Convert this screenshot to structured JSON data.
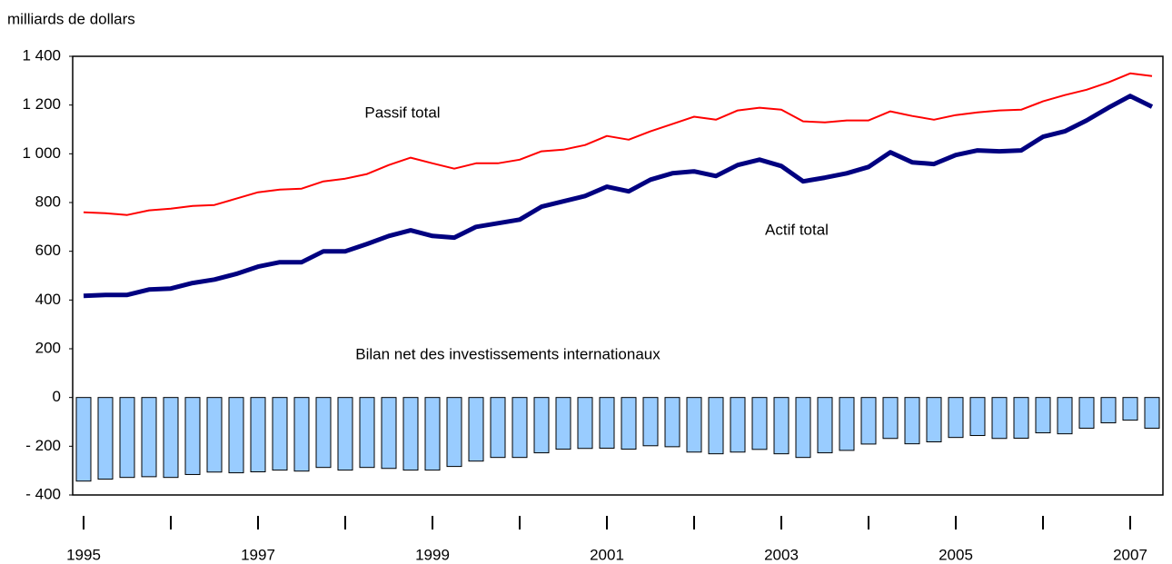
{
  "chart_data": {
    "type": "combo",
    "y_axis_label": "milliards de dollars",
    "categories": [
      "1995",
      null,
      null,
      null,
      null,
      null,
      null,
      null,
      "1997",
      null,
      null,
      null,
      null,
      null,
      null,
      null,
      "1999",
      null,
      null,
      null,
      null,
      null,
      null,
      null,
      "2001",
      null,
      null,
      null,
      null,
      null,
      null,
      null,
      "2003",
      null,
      null,
      null,
      null,
      null,
      null,
      null,
      "2005",
      null,
      null,
      null,
      null,
      null,
      null,
      null,
      "2007",
      null
    ],
    "series": [
      {
        "name": "Passif total",
        "type": "line",
        "color": "#ff0000",
        "values": [
          760,
          756,
          749,
          768,
          775,
          786,
          790,
          816,
          842,
          853,
          857,
          887,
          898,
          917,
          954,
          984,
          961,
          939,
          961,
          961,
          976,
          1010,
          1017,
          1036,
          1073,
          1058,
          1092,
          1122,
          1152,
          1140,
          1178,
          1189,
          1181,
          1133,
          1129,
          1137,
          1137,
          1174,
          1155,
          1140,
          1159,
          1170,
          1178,
          1181,
          1215,
          1241,
          1263,
          1293,
          1330,
          1319
        ]
      },
      {
        "name": "Actif total",
        "type": "line",
        "color": "#000080",
        "values": [
          417,
          421,
          421,
          443,
          447,
          470,
          484,
          507,
          537,
          555,
          555,
          600,
          600,
          630,
          663,
          686,
          663,
          656,
          700,
          715,
          730,
          783,
          805,
          827,
          865,
          846,
          894,
          920,
          928,
          909,
          954,
          976,
          950,
          887,
          902,
          920,
          946,
          1006,
          965,
          958,
          995,
          1014,
          1010,
          1014,
          1070,
          1092,
          1137,
          1189,
          1237,
          1193
        ]
      },
      {
        "name": "Bilan net des investissements internationaux",
        "type": "bar",
        "color": "#99ccff",
        "values": [
          -343,
          -335,
          -328,
          -325,
          -328,
          -316,
          -306,
          -309,
          -305,
          -298,
          -302,
          -287,
          -298,
          -287,
          -291,
          -298,
          -298,
          -283,
          -261,
          -246,
          -246,
          -227,
          -212,
          -209,
          -208,
          -212,
          -198,
          -202,
          -224,
          -231,
          -224,
          -213,
          -231,
          -246,
          -227,
          -217,
          -191,
          -168,
          -190,
          -182,
          -164,
          -156,
          -168,
          -167,
          -145,
          -149,
          -126,
          -104,
          -93,
          -126
        ]
      }
    ],
    "ylim": [
      -400,
      1400
    ],
    "yticks": [
      {
        "value": -400,
        "label": "- 400"
      },
      {
        "value": -200,
        "label": "- 200"
      },
      0,
      200,
      400,
      600,
      800,
      {
        "value": 1000,
        "label": "1 000"
      },
      {
        "value": 1200,
        "label": "1 200"
      },
      {
        "value": 1400,
        "label": "1 400"
      }
    ],
    "grid": false
  }
}
